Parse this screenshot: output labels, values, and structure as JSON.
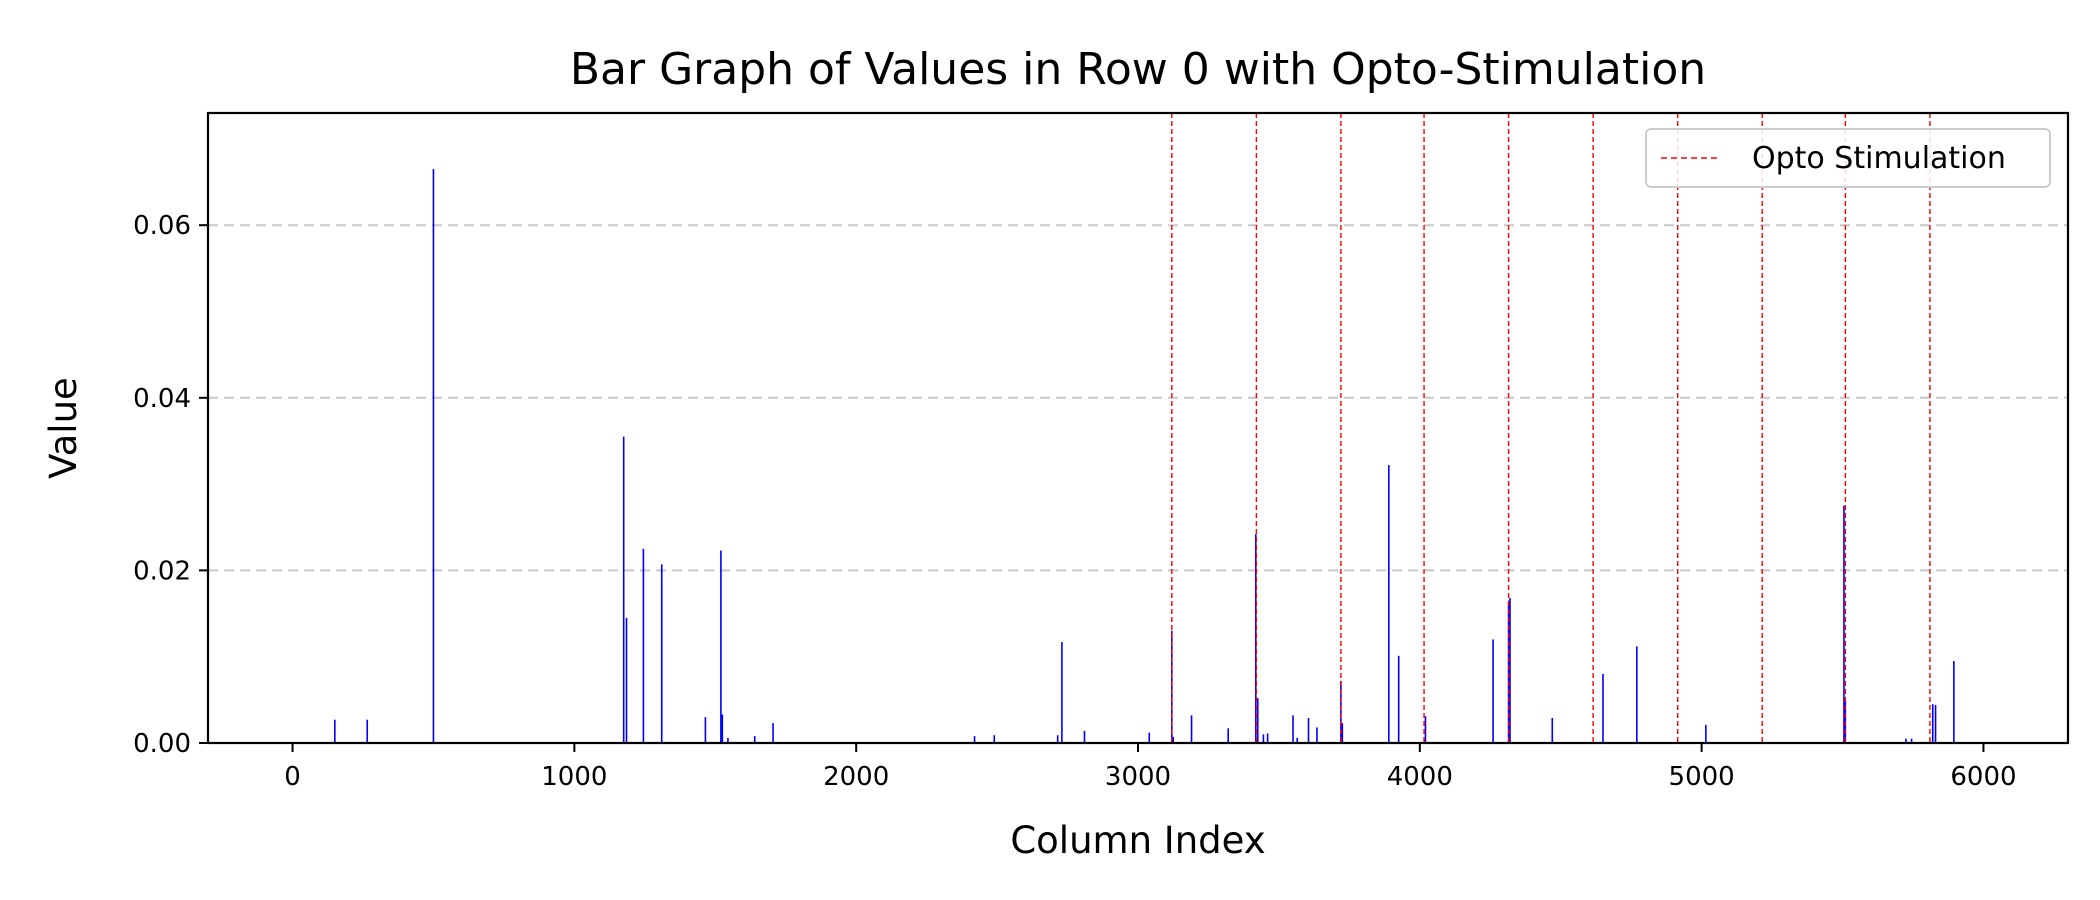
{
  "chart_data": {
    "type": "bar",
    "title": "Bar Graph of Values in Row 0 with Opto-Stimulation",
    "xlabel": "Column Index",
    "ylabel": "Value",
    "xlim": [
      -300,
      6300
    ],
    "ylim": [
      0,
      0.073
    ],
    "xticks": [
      0,
      1000,
      2000,
      3000,
      4000,
      5000,
      6000
    ],
    "yticks": [
      0.0,
      0.02,
      0.04,
      0.06
    ],
    "ytick_labels": [
      "0.00",
      "0.02",
      "0.04",
      "0.06"
    ],
    "grid": "y-dashed",
    "bar_color": "#0000ff",
    "series": [
      {
        "x": [
          150,
          265,
          500,
          1175,
          1185,
          1245,
          1310,
          1465,
          1520,
          1525,
          1545,
          1640,
          1705,
          2420,
          2490,
          2715,
          2730,
          2810,
          3040,
          3120,
          3125,
          3190,
          3320,
          3418,
          3425,
          3445,
          3460,
          3550,
          3565,
          3605,
          3635,
          3720,
          3725,
          3890,
          3925,
          4020,
          4260,
          4315,
          4320,
          4470,
          4650,
          4770,
          5015,
          5505,
          5510,
          5725,
          5745,
          5820,
          5830,
          5895
        ],
        "values": [
          0.0027,
          0.0027,
          0.0665,
          0.0355,
          0.0145,
          0.0225,
          0.0207,
          0.003,
          0.0223,
          0.0033,
          0.0006,
          0.0008,
          0.0023,
          0.0008,
          0.0009,
          0.0009,
          0.0117,
          0.0014,
          0.0012,
          0.013,
          0.0007,
          0.0032,
          0.0017,
          0.0242,
          0.0052,
          0.001,
          0.0011,
          0.0032,
          0.0006,
          0.0029,
          0.0018,
          0.0072,
          0.0023,
          0.0322,
          0.0101,
          0.0031,
          0.012,
          0.0165,
          0.0168,
          0.0029,
          0.008,
          0.0112,
          0.0021,
          0.0275,
          0.005,
          0.0005,
          0.0005,
          0.0045,
          0.0044,
          0.0095
        ]
      }
    ],
    "opto_stimulation": {
      "label": "Opto Stimulation",
      "color": "#ff0000",
      "x": [
        3120,
        3420,
        3720,
        4015,
        4315,
        4615,
        4915,
        5215,
        5510,
        5810
      ]
    },
    "legend_position": "upper right"
  }
}
